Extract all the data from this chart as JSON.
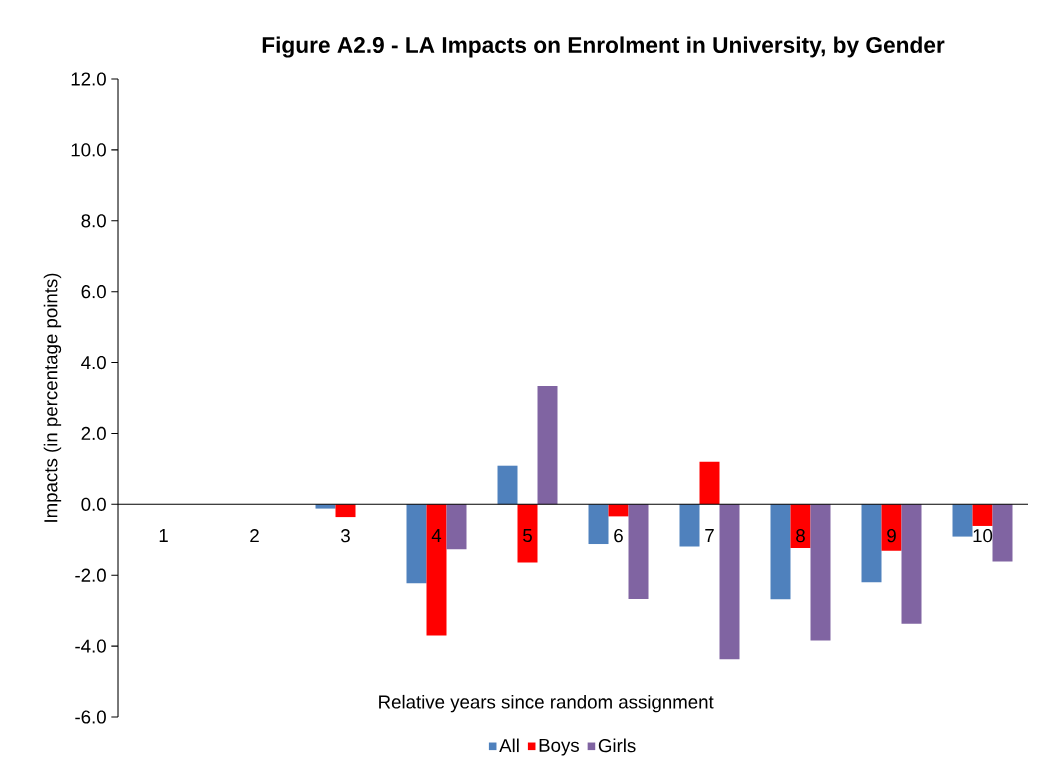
{
  "chart_data": {
    "type": "bar",
    "title": "Figure A2.9 - LA Impacts on Enrolment in University, by Gender",
    "xlabel": "Relative years since random assignment",
    "ylabel": "Impacts (in percentage points)",
    "categories": [
      "1",
      "2",
      "3",
      "4",
      "5",
      "6",
      "7",
      "8",
      "9",
      "10"
    ],
    "series": [
      {
        "name": "All",
        "color": "#4f81bd",
        "values": [
          null,
          null,
          -0.12,
          -2.23,
          1.09,
          -1.12,
          -1.19,
          -2.68,
          -2.2,
          -0.91
        ]
      },
      {
        "name": "Boys",
        "color": "#ff0000",
        "values": [
          null,
          null,
          -0.36,
          -3.7,
          -1.64,
          -0.34,
          1.2,
          -1.23,
          -1.31,
          -0.61
        ]
      },
      {
        "name": "Girls",
        "color": "#8064a2",
        "values": [
          null,
          null,
          null,
          -1.27,
          3.34,
          -2.67,
          -4.37,
          -3.84,
          -3.37,
          -1.61
        ]
      }
    ],
    "ylim": [
      -6,
      12
    ],
    "yticks": [
      {
        "value": -6,
        "label": "-6.0"
      },
      {
        "value": -4,
        "label": "-4.0"
      },
      {
        "value": -2,
        "label": "-2.0"
      },
      {
        "value": 0,
        "label": "0.0"
      },
      {
        "value": 2,
        "label": "2.0"
      },
      {
        "value": 4,
        "label": "4.0"
      },
      {
        "value": 6,
        "label": "6.0"
      },
      {
        "value": 8,
        "label": "8.0"
      },
      {
        "value": 10,
        "label": "10.0"
      },
      {
        "value": 12,
        "label": "12.0"
      }
    ],
    "legend": "bottom"
  }
}
